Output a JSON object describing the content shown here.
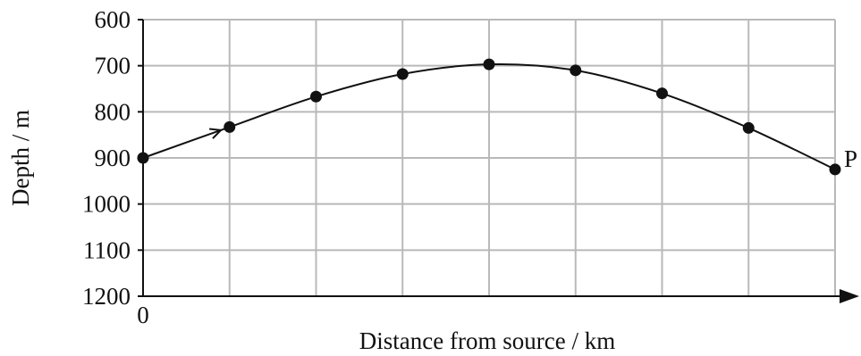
{
  "chart_data": {
    "type": "line",
    "title": "",
    "xlabel": "Distance from source / km",
    "ylabel": "Depth / m",
    "x_tick_labels": [
      "0"
    ],
    "y_ticks": [
      600,
      700,
      800,
      900,
      1000,
      1100,
      1200
    ],
    "y_tick_labels": [
      "600",
      "700",
      "800",
      "900",
      "1000",
      "1100",
      "1200"
    ],
    "y_inverted": true,
    "ylim": [
      600,
      1200
    ],
    "xlim": [
      0,
      8
    ],
    "x_grid_divisions": 8,
    "grid": true,
    "series": [
      {
        "x": [
          0,
          1,
          2,
          3,
          4,
          5,
          6,
          7,
          8
        ],
        "values": [
          900,
          833,
          767,
          718,
          697,
          710,
          760,
          835,
          925
        ]
      }
    ],
    "annotations": [
      {
        "text": "P",
        "x": 8,
        "y": 925
      }
    ],
    "direction_arrow": {
      "from_x": 0.6,
      "to_x": 0.9
    },
    "colors": {
      "line": "#111111",
      "grid": "#b9b9b9",
      "marker": "#111111"
    }
  }
}
